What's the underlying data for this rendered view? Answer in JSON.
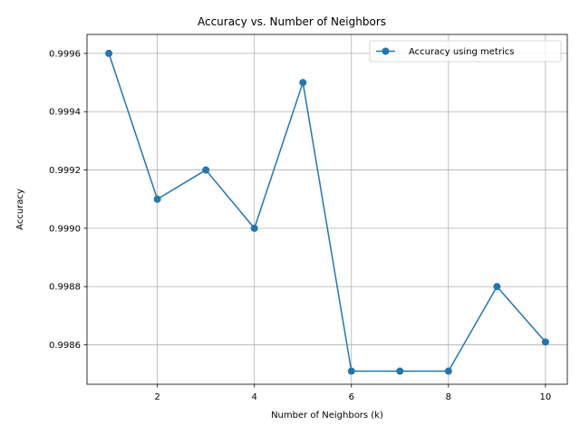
{
  "chart_data": {
    "type": "line",
    "title": "Accuracy vs. Number of Neighbors",
    "xlabel": "Number of Neighbors (k)",
    "ylabel": "Accuracy",
    "x": [
      1,
      2,
      3,
      4,
      5,
      6,
      7,
      8,
      9,
      10
    ],
    "series": [
      {
        "name": "Accuracy using metrics",
        "values": [
          0.9996,
          0.9991,
          0.9992,
          0.999,
          0.9995,
          0.99851,
          0.99851,
          0.99851,
          0.9988,
          0.99861
        ],
        "color": "#1f77b4",
        "marker": "circle"
      }
    ],
    "xlim": [
      0.55,
      10.45
    ],
    "ylim": [
      0.998465,
      0.999665
    ],
    "xticks": [
      2,
      4,
      6,
      8,
      10
    ],
    "xtick_labels": [
      "2",
      "4",
      "6",
      "8",
      "10"
    ],
    "yticks": [
      0.9986,
      0.9988,
      0.999,
      0.9992,
      0.9994,
      0.9996
    ],
    "ytick_labels": [
      "0.9986",
      "0.9988",
      "0.9990",
      "0.9992",
      "0.9994",
      "0.9996"
    ],
    "grid": true,
    "legend_position": "top-right"
  }
}
